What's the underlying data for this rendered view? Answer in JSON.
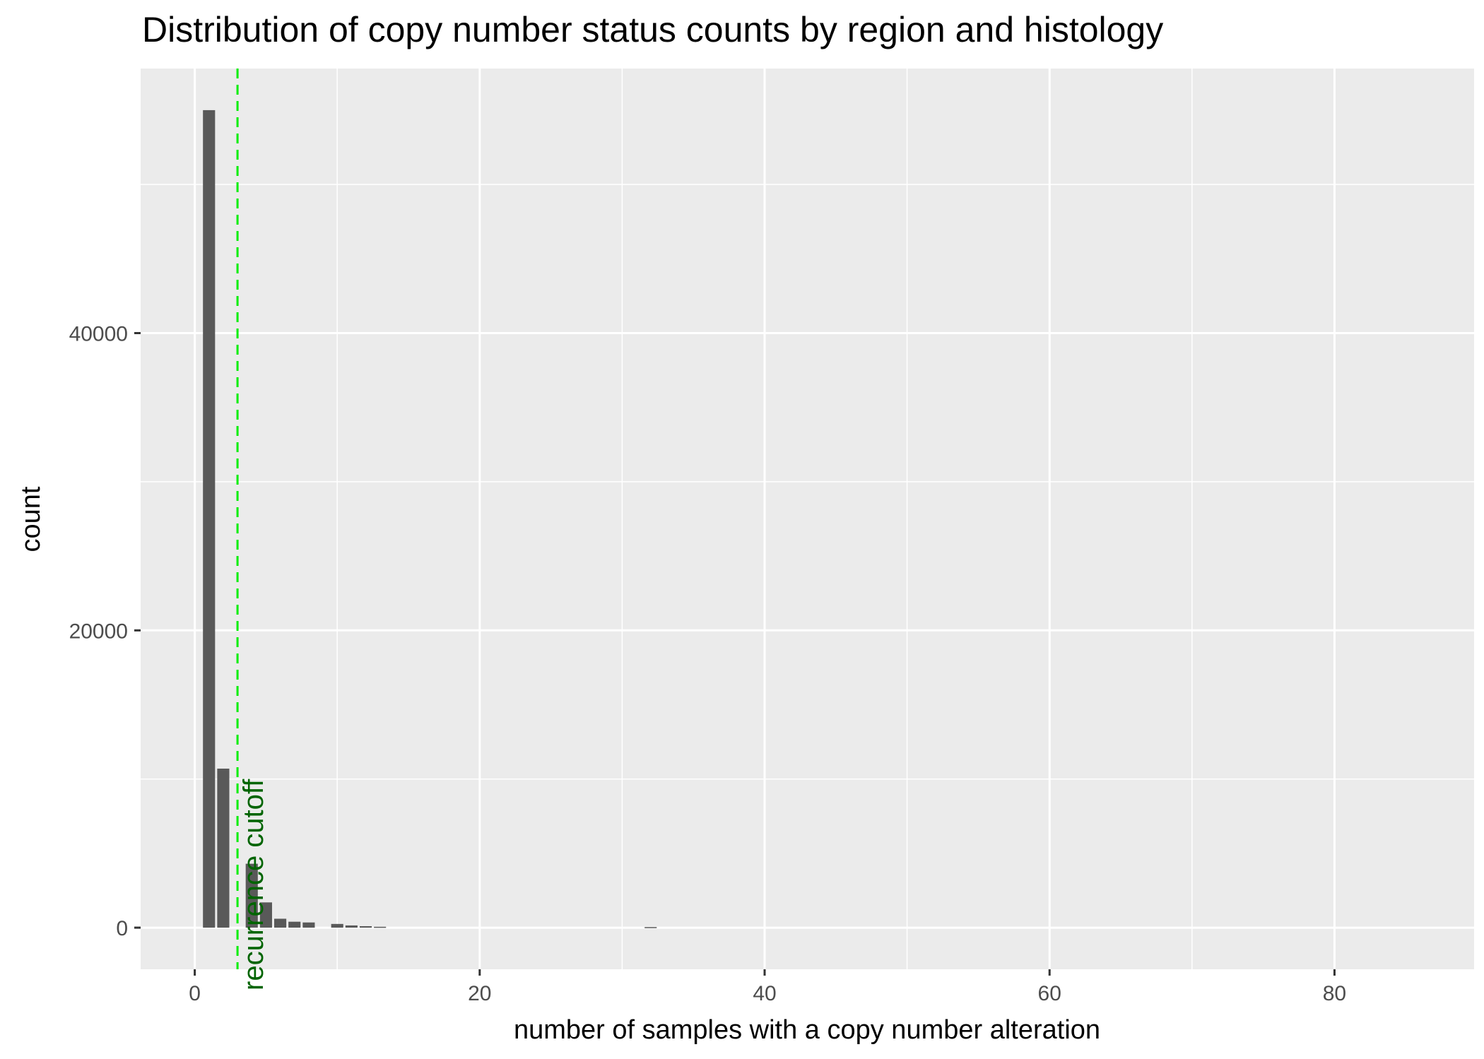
{
  "chart_data": {
    "type": "bar",
    "title": "Distribution of copy number status counts by region and histology",
    "xlabel": "number of samples with a copy number alteration",
    "ylabel": "count",
    "xlim": [
      -3.8,
      89.8
    ],
    "ylim": [
      -2800,
      57800
    ],
    "x_ticks": [
      0,
      20,
      40,
      60,
      80
    ],
    "y_ticks": [
      0,
      20000,
      40000
    ],
    "x_minor_gridlines": [
      10,
      30,
      50,
      70
    ],
    "y_minor_gridlines": [
      10000,
      30000,
      50000
    ],
    "grid": true,
    "bin_width": 0.85,
    "bins": [
      {
        "x": 1,
        "count": 55000
      },
      {
        "x": 2,
        "count": 10700
      },
      {
        "x": 3,
        "count": 0
      },
      {
        "x": 4,
        "count": 4300
      },
      {
        "x": 5,
        "count": 1700
      },
      {
        "x": 6,
        "count": 600
      },
      {
        "x": 7,
        "count": 400
      },
      {
        "x": 8,
        "count": 350
      },
      {
        "x": 9,
        "count": 0
      },
      {
        "x": 10,
        "count": 250
      },
      {
        "x": 11,
        "count": 150
      },
      {
        "x": 12,
        "count": 100
      },
      {
        "x": 13,
        "count": 60
      },
      {
        "x": 32,
        "count": 40
      }
    ],
    "reference_line": {
      "x": 3,
      "label": "recurrence cutoff",
      "line_color": "#00ee00",
      "label_color": "#006400"
    },
    "colors": {
      "bar": "#595959",
      "panel": "#ebebeb",
      "grid": "#ffffff"
    }
  }
}
